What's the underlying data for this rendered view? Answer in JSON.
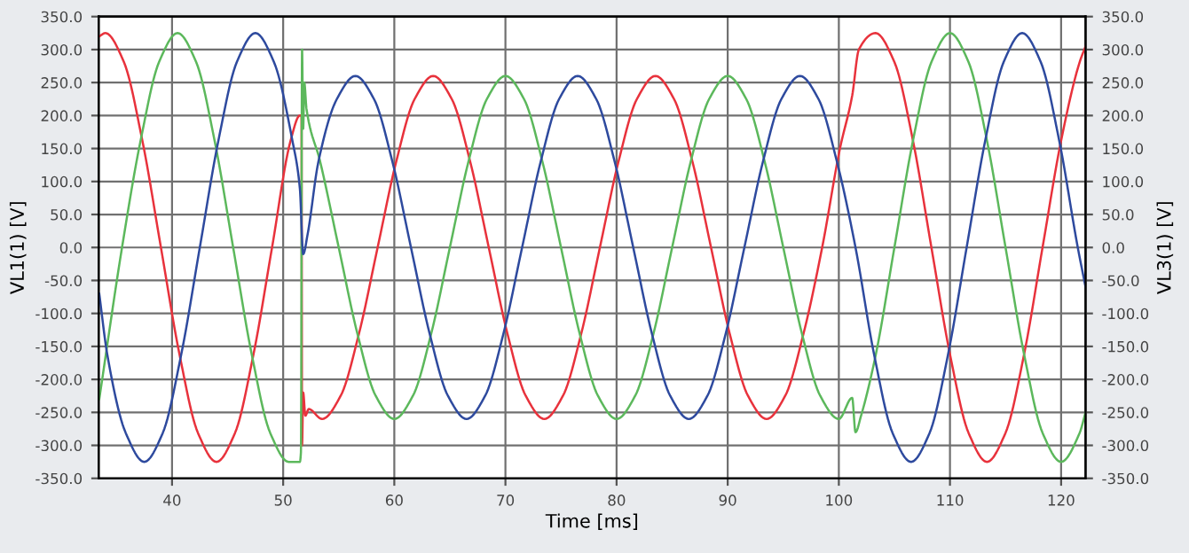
{
  "chart_data": {
    "type": "line",
    "xlabel": "Time [ms]",
    "ylabel": "VL1(1) [V]",
    "y2label": "VL3(1) [V]",
    "xlim": [
      33.4,
      122.2
    ],
    "xticks": [
      40,
      50,
      60,
      70,
      80,
      90,
      100,
      110,
      120
    ],
    "ylim": [
      -350,
      350
    ],
    "yticks": [
      {
        "value": -350,
        "label": "-350.0"
      },
      {
        "value": -300,
        "label": "-300.0"
      },
      {
        "value": -250,
        "label": "-250.0"
      },
      {
        "value": -200,
        "label": "-200.0"
      },
      {
        "value": -150,
        "label": "-150.0"
      },
      {
        "value": -100,
        "label": "-100.0"
      },
      {
        "value": -50,
        "label": "-50.0"
      },
      {
        "value": 0,
        "label": "0.0"
      },
      {
        "value": 50,
        "label": "50.0"
      },
      {
        "value": 100,
        "label": "100.0"
      },
      {
        "value": 150,
        "label": "150.0"
      },
      {
        "value": 200,
        "label": "200.0"
      },
      {
        "value": 250,
        "label": "250.0"
      },
      {
        "value": 300,
        "label": "300.0"
      },
      {
        "value": 350,
        "label": "350.0"
      }
    ],
    "y2lim": [
      -350,
      350
    ],
    "y2ticks": [
      {
        "value": -350,
        "label": "-350.0"
      },
      {
        "value": -300,
        "label": "-300.0"
      },
      {
        "value": -250,
        "label": "-250.0"
      },
      {
        "value": -200,
        "label": "-200.0"
      },
      {
        "value": -150,
        "label": "-150.0"
      },
      {
        "value": -100,
        "label": "-100.0"
      },
      {
        "value": -50,
        "label": "-50.0"
      },
      {
        "value": 0,
        "label": "0.0"
      },
      {
        "value": 50,
        "label": "50.0"
      },
      {
        "value": 100,
        "label": "100.0"
      },
      {
        "value": 150,
        "label": "150.0"
      },
      {
        "value": 200,
        "label": "200.0"
      },
      {
        "value": 250,
        "label": "250.0"
      },
      {
        "value": 300,
        "label": "300.0"
      },
      {
        "value": 350,
        "label": "350.0"
      }
    ],
    "grid": true,
    "legend": false,
    "marker": "none",
    "line_style": "solid",
    "series": [
      {
        "color": "#e8323c",
        "x": [
          33.45,
          34,
          35.67,
          37.33,
          39,
          40.67,
          42.33,
          44,
          45.67,
          47.33,
          49,
          50.67,
          51.5,
          51.65,
          51.7,
          51.8,
          52.0,
          52.3,
          53.5,
          55.17,
          56.83,
          58.5,
          60.17,
          61.83,
          63.5,
          65.17,
          66.83,
          68.5,
          70.17,
          71.83,
          73.5,
          75.17,
          76.83,
          78.5,
          80.17,
          81.83,
          83.5,
          85.17,
          86.83,
          88.5,
          90.17,
          91.83,
          93.5,
          95.17,
          96.83,
          98.5,
          100.1,
          101.2,
          101.8,
          103.3,
          105,
          106.67,
          108.33,
          110,
          111.67,
          113.33,
          115,
          116.67,
          118.33,
          120,
          121.67,
          122.2
        ],
        "values": [
          320,
          325,
          281,
          162,
          0,
          -162,
          -281,
          -325,
          -281,
          -162,
          0,
          162,
          200,
          200,
          -300,
          -220,
          -255,
          -245,
          -260,
          -225,
          -130,
          0,
          130,
          225,
          260,
          225,
          130,
          0,
          -130,
          -225,
          -260,
          -225,
          -130,
          0,
          130,
          225,
          260,
          225,
          130,
          0,
          -130,
          -225,
          -260,
          -225,
          -130,
          0,
          150,
          230,
          300,
          325,
          281,
          162,
          0,
          -162,
          -281,
          -325,
          -281,
          -162,
          0,
          162,
          281,
          305
        ]
      },
      {
        "color": "#5cb85c",
        "x": [
          33.45,
          35.5,
          37.17,
          38.83,
          40.5,
          42.17,
          43.83,
          45.5,
          47.17,
          48.83,
          50.5,
          51.5,
          51.6,
          51.7,
          51.8,
          51.9,
          52.1,
          53.33,
          55,
          56.67,
          58.33,
          60,
          61.67,
          63.33,
          65,
          66.67,
          68.33,
          70,
          71.67,
          73.33,
          75,
          76.67,
          78.33,
          80,
          81.67,
          83.33,
          85,
          86.67,
          88.33,
          90,
          91.67,
          93.33,
          95,
          96.67,
          98.33,
          100,
          101.2,
          101.5,
          102,
          103.33,
          105,
          106.67,
          108.33,
          110,
          111.67,
          113.33,
          115,
          116.67,
          118.33,
          120,
          121.67,
          122.2
        ],
        "values": [
          -230,
          0,
          162,
          281,
          325,
          281,
          162,
          0,
          -162,
          -281,
          -325,
          -325,
          -310,
          300,
          180,
          250,
          210,
          130,
          0,
          -130,
          -225,
          -260,
          -225,
          -130,
          0,
          130,
          225,
          260,
          225,
          130,
          0,
          -130,
          -225,
          -260,
          -225,
          -130,
          0,
          130,
          225,
          260,
          225,
          130,
          0,
          -130,
          -225,
          -260,
          -228,
          -280,
          -255,
          -162,
          0,
          162,
          281,
          325,
          281,
          162,
          0,
          -162,
          -281,
          -325,
          -281,
          -250
        ]
      },
      {
        "color": "#2e4a9e",
        "x": [
          33.45,
          34.17,
          35.83,
          37.5,
          39.17,
          40.83,
          42.5,
          44.17,
          45.83,
          47.5,
          49.17,
          50.83,
          51.5,
          51.8,
          52.2,
          53.17,
          54.83,
          56.5,
          58.17,
          59.83,
          61.5,
          63.17,
          64.83,
          66.5,
          68.17,
          69.83,
          71.5,
          73.17,
          74.83,
          76.5,
          78.17,
          79.83,
          81.5,
          83.17,
          84.83,
          86.5,
          88.17,
          89.83,
          91.5,
          93.17,
          94.83,
          96.5,
          98.17,
          99.83,
          101.5,
          103.17,
          104.83,
          106.5,
          108.17,
          109.83,
          111.5,
          113.17,
          114.83,
          116.5,
          118.17,
          119.83,
          121.5,
          122.2
        ],
        "values": [
          -70,
          -162,
          -281,
          -325,
          -281,
          -162,
          0,
          162,
          281,
          325,
          281,
          162,
          90,
          -10,
          20,
          130,
          225,
          260,
          225,
          130,
          0,
          -130,
          -225,
          -260,
          -225,
          -130,
          0,
          130,
          225,
          260,
          225,
          130,
          0,
          -130,
          -225,
          -260,
          -225,
          -130,
          0,
          130,
          225,
          260,
          225,
          130,
          0,
          -162,
          -281,
          -325,
          -281,
          -162,
          0,
          162,
          281,
          325,
          281,
          162,
          0,
          -60
        ]
      }
    ]
  }
}
